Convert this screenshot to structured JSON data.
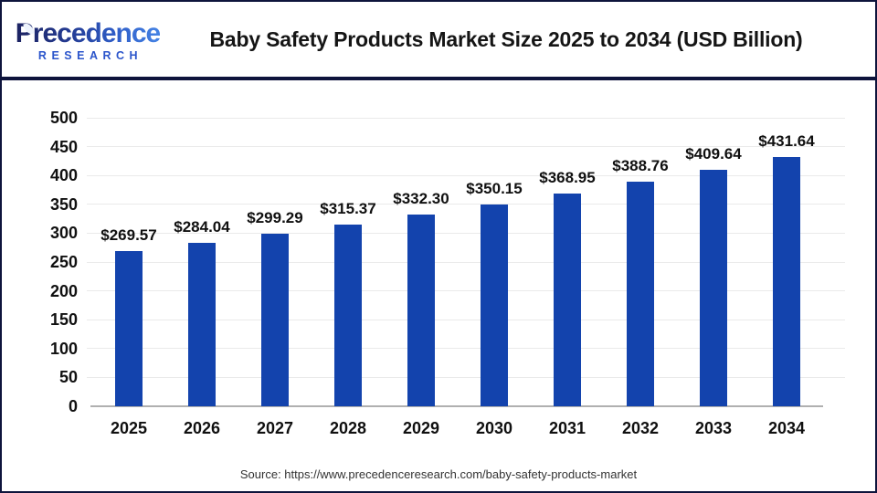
{
  "header": {
    "logo": {
      "initial": "P",
      "rest": "recedence",
      "sub": "RESEARCH"
    },
    "title": "Baby Safety Products Market Size 2025 to 2034 (USD Billion)"
  },
  "footer": {
    "source": "Source: https://www.precedenceresearch.com/baby-safety-products-market"
  },
  "colors": {
    "frame_navy": "#0e143c",
    "bar_blue": "#1343ad",
    "logo_blue": "#2b55cb",
    "gridline": "#eaeaea",
    "axis_line": "#b0b0b0"
  },
  "chart_data": {
    "type": "bar",
    "title": "Baby Safety Products Market Size 2025 to 2034 (USD Billion)",
    "categories": [
      "2025",
      "2026",
      "2027",
      "2028",
      "2029",
      "2030",
      "2031",
      "2032",
      "2033",
      "2034"
    ],
    "values": [
      269.57,
      284.04,
      299.29,
      315.37,
      332.3,
      350.15,
      368.95,
      388.76,
      409.64,
      431.64
    ],
    "value_labels": [
      "$269.57",
      "$284.04",
      "$299.29",
      "$315.37",
      "$332.30",
      "$350.15",
      "$368.95",
      "$388.76",
      "$409.64",
      "$431.64"
    ],
    "xlabel": "",
    "ylabel": "",
    "ylim": [
      0,
      500
    ],
    "yticks": [
      0,
      50,
      100,
      150,
      200,
      250,
      300,
      350,
      400,
      450,
      500
    ],
    "grid": true,
    "legend": "none",
    "bar_color": "#1343ad",
    "unit": "USD Billion"
  }
}
